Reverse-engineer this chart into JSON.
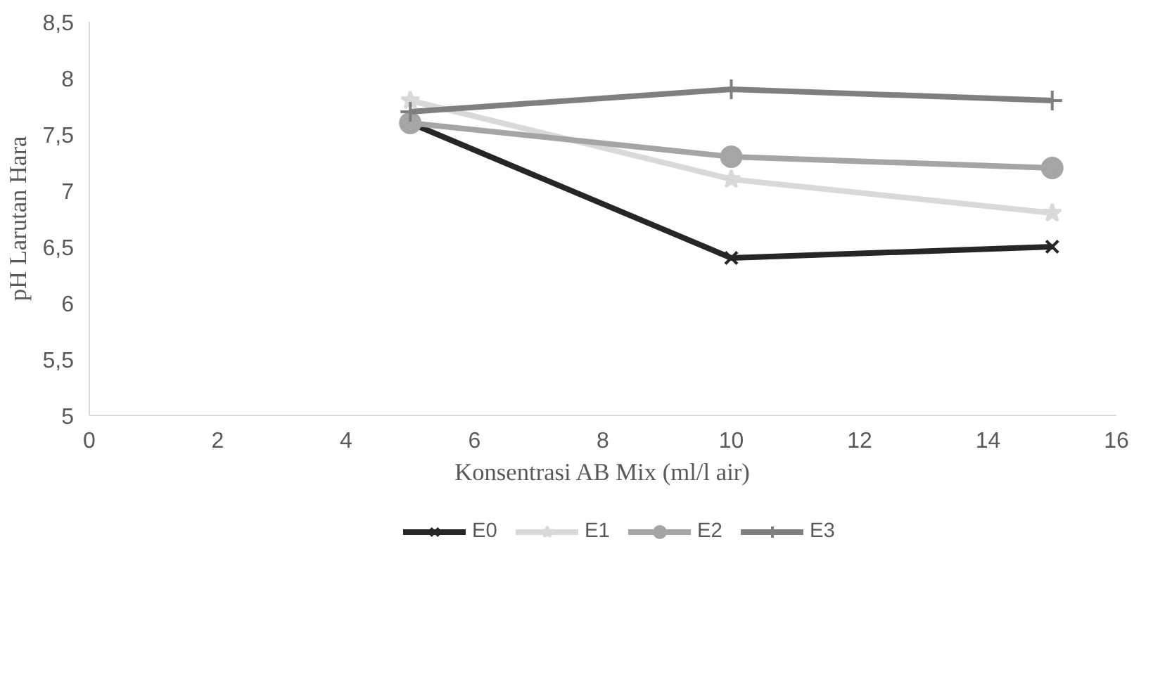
{
  "chart_data": {
    "type": "line",
    "xlabel": "Konsentrasi AB Mix (ml/l air)",
    "ylabel": "pH Larutan Hara",
    "x": [
      5,
      10,
      15
    ],
    "series": [
      {
        "name": "E0",
        "color": "#262626",
        "marker": "cross",
        "values": [
          7.6,
          6.4,
          6.5
        ]
      },
      {
        "name": "E1",
        "color": "#d9d9d9",
        "marker": "star",
        "values": [
          7.8,
          7.1,
          6.8
        ]
      },
      {
        "name": "E2",
        "color": "#a5a5a5",
        "marker": "circle",
        "values": [
          7.6,
          7.3,
          7.2
        ]
      },
      {
        "name": "E3",
        "color": "#7f7f7f",
        "marker": "plus",
        "values": [
          7.7,
          7.9,
          7.8
        ]
      }
    ],
    "xlim": [
      0,
      16
    ],
    "xticks": [
      0,
      2,
      4,
      6,
      8,
      10,
      12,
      14,
      16
    ],
    "ylim": [
      5,
      8.5
    ],
    "yticks": [
      5,
      {
        "value": 5.5,
        "label": "5,5"
      },
      6,
      {
        "value": 6.5,
        "label": "6,5"
      },
      7,
      {
        "value": 7.5,
        "label": "7,5"
      },
      8,
      {
        "value": 8.5,
        "label": "8,5"
      }
    ],
    "grid": false,
    "legend": "bottom",
    "line_style": "solid"
  }
}
